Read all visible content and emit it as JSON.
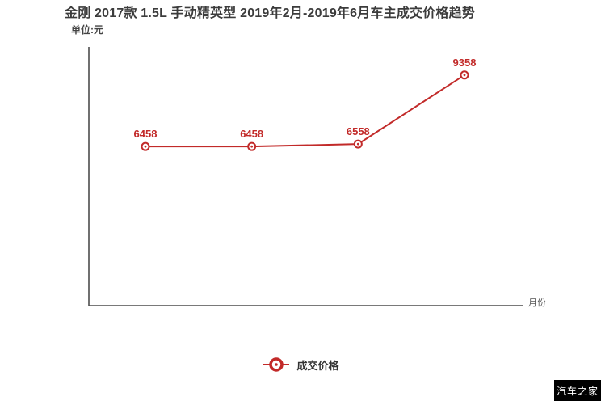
{
  "page": {
    "watermark": "汽车之家"
  },
  "chart_data": {
    "type": "line",
    "title": "金刚 2017款 1.5L 手动精英型 2019年2月-2019年6月车主成交价格趋势",
    "unit_label": "单位:元",
    "xlabel": "月份",
    "ylabel": "",
    "ylim": [
      0,
      10500
    ],
    "grid": false,
    "legend_position": "bottom-center",
    "x_tick_labels": [],
    "series": [
      {
        "name": "成交价格",
        "values": [
          6458,
          6458,
          6558,
          9358
        ],
        "point_labels": [
          "6458",
          "6458",
          "6558",
          "9358"
        ],
        "color": "#c22a29"
      }
    ],
    "axis_color": "#4d4d4d",
    "label_color": "#c22a29"
  }
}
